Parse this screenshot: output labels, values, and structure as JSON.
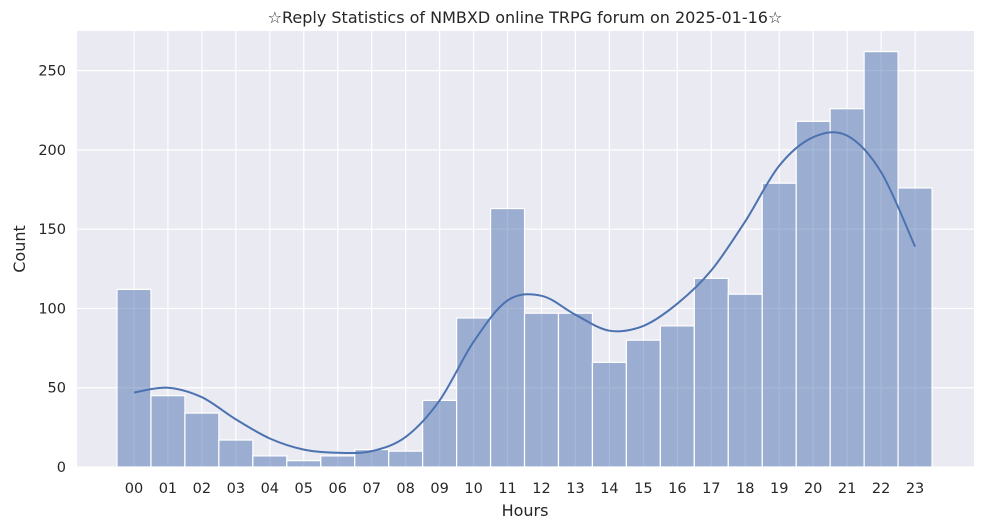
{
  "chart_data": {
    "type": "bar",
    "title": "☆Reply Statistics of NMBXD online TRPG forum on 2025-01-16☆",
    "xlabel": "Hours",
    "ylabel": "Count",
    "categories": [
      "00",
      "01",
      "02",
      "03",
      "04",
      "05",
      "06",
      "07",
      "08",
      "09",
      "10",
      "11",
      "12",
      "13",
      "14",
      "15",
      "16",
      "17",
      "18",
      "19",
      "20",
      "21",
      "22",
      "23"
    ],
    "values": [
      112,
      45,
      34,
      17,
      7,
      4,
      7,
      11,
      10,
      42,
      94,
      163,
      97,
      97,
      66,
      80,
      89,
      119,
      109,
      179,
      218,
      226,
      262,
      176
    ],
    "kde": [
      47,
      50,
      44,
      30,
      18,
      11,
      9,
      10,
      19,
      42,
      79,
      105,
      108,
      96,
      86,
      89,
      103,
      124,
      155,
      190,
      208,
      209,
      186,
      139
    ],
    "ylim": [
      0,
      275
    ],
    "yticks": [
      0,
      50,
      100,
      150,
      200,
      250
    ],
    "grid": true,
    "colors": {
      "bar": "#4c72b0",
      "kde": "#4c72b0",
      "background": "#eaeaf2",
      "grid": "#ffffff"
    }
  }
}
